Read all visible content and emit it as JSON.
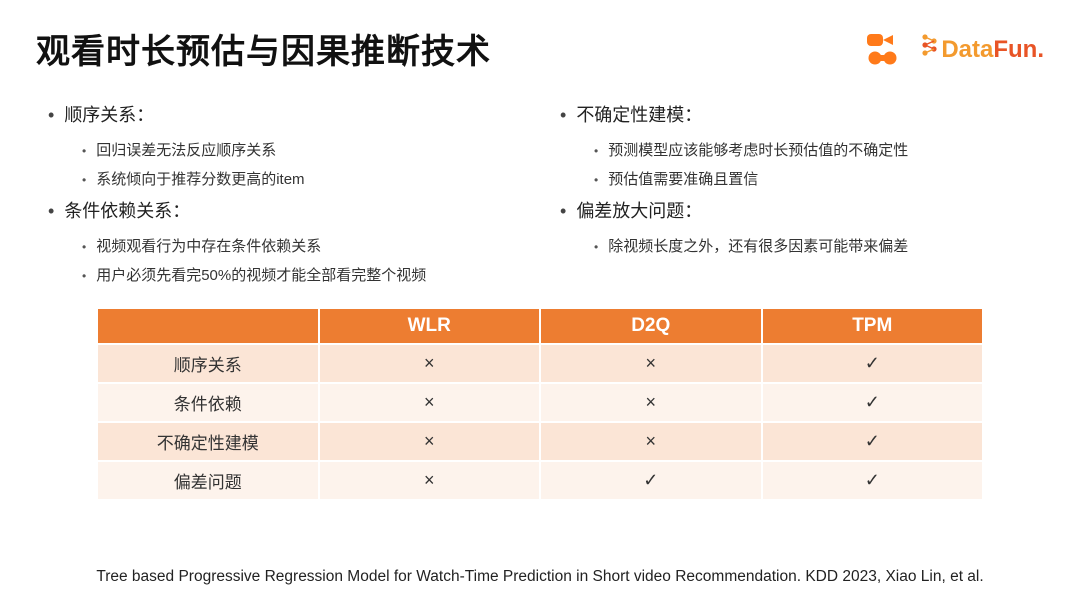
{
  "header": {
    "title": "观看时长预估与因果推断技术",
    "logo_datafun_left": "Data",
    "logo_datafun_right": "Fun.",
    "logo_datafun_colors": {
      "left": "#f39a2e",
      "right": "#e85426"
    }
  },
  "left_column": [
    {
      "heading": "顺序关系：",
      "items": [
        "回归误差无法反应顺序关系",
        "系统倾向于推荐分数更高的item"
      ]
    },
    {
      "heading": "条件依赖关系：",
      "items": [
        "视频观看行为中存在条件依赖关系",
        "用户必须先看完50%的视频才能全部看完整个视频"
      ]
    }
  ],
  "right_column": [
    {
      "heading": "不确定性建模：",
      "items": [
        "预测模型应该能够考虑时长预估值的不确定性",
        "预估值需要准确且置信"
      ]
    },
    {
      "heading": "偏差放大问题：",
      "items": [
        "除视频长度之外，还有很多因素可能带来偏差"
      ]
    }
  ],
  "table": {
    "columns": [
      "",
      "WLR",
      "D2Q",
      "TPM"
    ],
    "rows": [
      {
        "label": "顺序关系",
        "cells": [
          "×",
          "×",
          "✓"
        ]
      },
      {
        "label": "条件依赖",
        "cells": [
          "×",
          "×",
          "✓"
        ]
      },
      {
        "label": "不确定性建模",
        "cells": [
          "×",
          "×",
          "✓"
        ]
      },
      {
        "label": "偏差问题",
        "cells": [
          "×",
          "✓",
          "✓"
        ]
      }
    ],
    "header_bg": "#ed7d31",
    "row_bg": [
      "#fbe5d6",
      "#fdf3ec"
    ]
  },
  "footer": "Tree based Progressive Regression Model for Watch-Time Prediction in Short video Recommendation. KDD 2023, Xiao Lin, et al."
}
